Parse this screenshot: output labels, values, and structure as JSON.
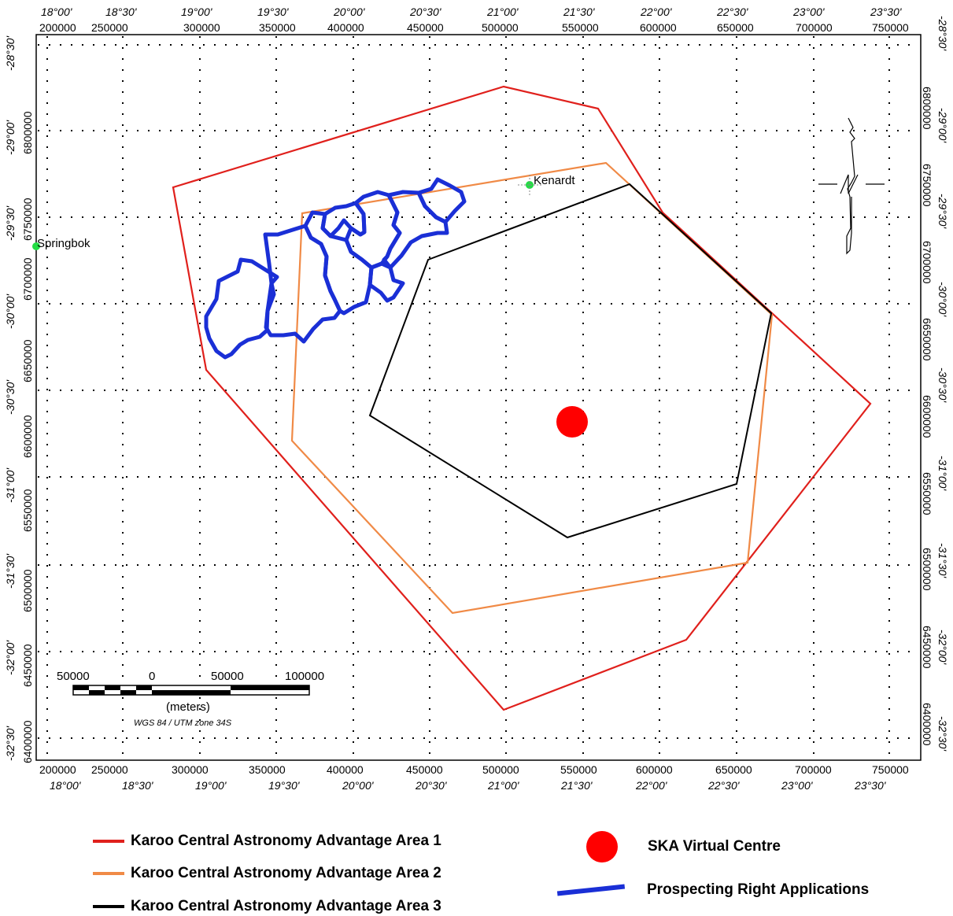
{
  "top_lon_labels": [
    "18°00'",
    "18°30'",
    "19°00'",
    "19°30'",
    "20°00'",
    "20°30'",
    "21°00'",
    "21°30'",
    "22°00'",
    "22°30'",
    "23°00'",
    "23°30'"
  ],
  "top_utm_labels": [
    "200000",
    "250000",
    "300000",
    "350000",
    "400000",
    "450000",
    "500000",
    "550000",
    "600000",
    "650000",
    "700000",
    "750000"
  ],
  "bottom_utm_labels": [
    "200000",
    "250000",
    "300000",
    "350000",
    "400000",
    "450000",
    "500000",
    "550000",
    "600000",
    "650000",
    "700000",
    "750000"
  ],
  "bottom_lon_labels": [
    "18°00'",
    "18°30'",
    "19°00'",
    "19°30'",
    "20°00'",
    "20°30'",
    "21°00'",
    "21°30'",
    "22°00'",
    "22°30'",
    "23°00'",
    "23°30'"
  ],
  "left_lat_labels": [
    "-28°30'",
    "-29°00'",
    "-29°30'",
    "-30°00'",
    "-30°30'",
    "-31°00'",
    "-31°30'",
    "-32°00'",
    "-32°30'"
  ],
  "left_utm_labels": [
    "6800000",
    "6750000",
    "6700000",
    "6650000",
    "6600000",
    "6550000",
    "6500000",
    "6450000",
    "6400000"
  ],
  "right_lat_labels": [
    "-28°30'",
    "-29°00'",
    "-29°30'",
    "-30°00'",
    "-30°30'",
    "-31°00'",
    "-31°30'",
    "-32°00'",
    "-32°30'"
  ],
  "right_utm_labels": [
    "6800000",
    "6750000",
    "6700000",
    "6650000",
    "6600000",
    "6550000",
    "6500000",
    "6450000",
    "6400000"
  ],
  "places": {
    "springbok": "Springbok",
    "kenardt": "Kenardt"
  },
  "scale_bar": {
    "ticks": [
      "50000",
      "0",
      "50000",
      "100000"
    ],
    "unit": "(meters)",
    "projection": "WGS 84 / UTM zone 34S"
  },
  "legend": {
    "area1": "Karoo Central Astronomy Advantage Area 1",
    "area2": "Karoo Central Astronomy Advantage Area 2",
    "area3": "Karoo Central Astronomy Advantage Area 3",
    "ska": "SKA Virtual Centre",
    "prospecting": "Prospecting Right Applications"
  },
  "colors": {
    "area1": "#e0201c",
    "area2": "#f08a46",
    "area3": "#000000",
    "ska": "#ff0000",
    "prospecting": "#1a2fd6",
    "town": "#22dd44"
  },
  "icons": {
    "north_arrow": "north-arrow-icon"
  }
}
